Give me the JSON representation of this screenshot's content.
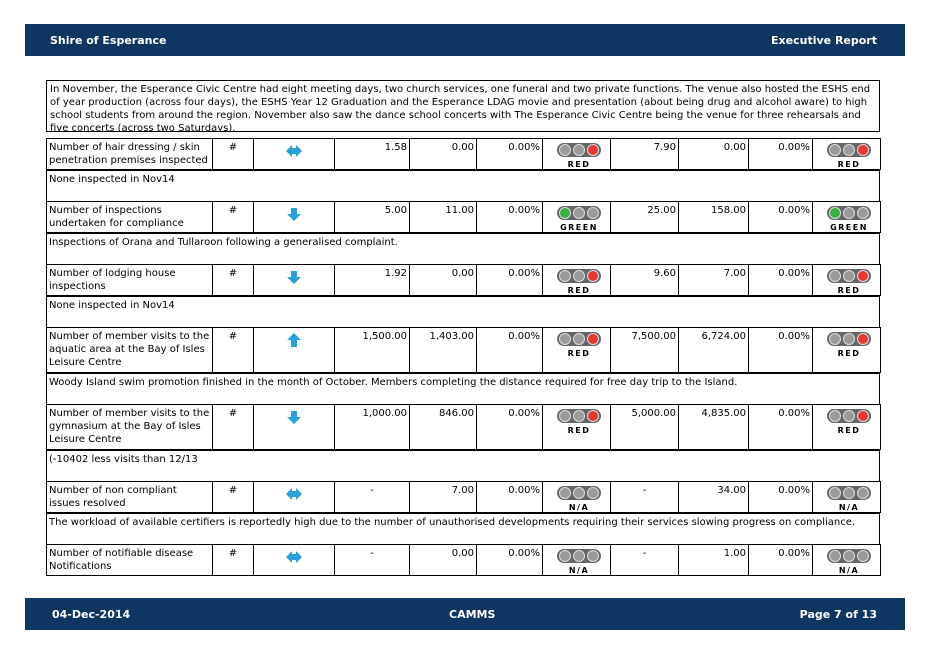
{
  "header": {
    "left": "Shire of Esperance",
    "right": "Executive Report"
  },
  "intro": "In November, the Esperance Civic Centre had eight meeting days, two church services, one funeral and two private functions.  The venue also hosted the ESHS end of year production (across four days), the ESHS Year 12 Graduation and the Esperance LDAG movie and presentation (about being drug and alcohol aware) to high school students from around the region. November also saw the dance school concerts with The Esperance Civic Centre being the venue for three rehearsals and five concerts (across two Saturdays).",
  "rows": [
    {
      "measure": "Number of hair dressing / skin penetration premises inspected",
      "unit": "#",
      "target": "1.58",
      "actual": "0.00",
      "variance": "0.00%",
      "status": "RED",
      "ytd_target": "7.90",
      "ytd_actual": "0.00",
      "ytd_variance": "0.00%",
      "ytd_status": "RED",
      "comment": "None inspected in Nov14"
    },
    {
      "measure": "Number of inspections undertaken for compliance",
      "unit": "#",
      "target": "5.00",
      "actual": "11.00",
      "variance": "0.00%",
      "status": "GREEN",
      "ytd_target": "25.00",
      "ytd_actual": "158.00",
      "ytd_variance": "0.00%",
      "ytd_status": "GREEN",
      "comment": "Inspections of Orana and Tullaroon following a generalised complaint."
    },
    {
      "measure": "Number of lodging house inspections",
      "unit": "#",
      "target": "1.92",
      "actual": "0.00",
      "variance": "0.00%",
      "status": "RED",
      "ytd_target": "9.60",
      "ytd_actual": "7.00",
      "ytd_variance": "0.00%",
      "ytd_status": "RED",
      "comment": "None inspected in Nov14"
    },
    {
      "measure": "Number of member visits to the aquatic area at the Bay of Isles Leisure Centre",
      "unit": "#",
      "target": "1,500.00",
      "actual": "1,403.00",
      "variance": "0.00%",
      "status": "RED",
      "ytd_target": "7,500.00",
      "ytd_actual": "6,724.00",
      "ytd_variance": "0.00%",
      "ytd_status": "RED",
      "comment": "Woody Island swim promotion finished in the month of October. Members completing the distance required for free day trip to the Island."
    },
    {
      "measure": "Number of member visits to the gymnasium at the Bay of Isles Leisure Centre",
      "unit": "#",
      "target": "1,000.00",
      "actual": "846.00",
      "variance": "0.00%",
      "status": "RED",
      "ytd_target": "5,000.00",
      "ytd_actual": "4,835.00",
      "ytd_variance": "0.00%",
      "ytd_status": "RED",
      "comment": "(-10402 less visits than 12/13"
    },
    {
      "measure": "Number of non compliant issues resolved",
      "unit": "#",
      "target": "-",
      "actual": "7.00",
      "variance": "0.00%",
      "status": "N/A",
      "ytd_target": "-",
      "ytd_actual": "34.00",
      "ytd_variance": "0.00%",
      "ytd_status": "N/A",
      "comment": "The workload of available certifiers is reportedly high due to the number of unauthorised developments requiring their services slowing progress on compliance."
    },
    {
      "measure": "Number of notifiable disease Notifications",
      "unit": "#",
      "target": "-",
      "actual": "0.00",
      "variance": "0.00%",
      "status": "N/A",
      "ytd_target": "-",
      "ytd_actual": "1.00",
      "ytd_variance": "0.00%",
      "ytd_status": "N/A"
    }
  ],
  "footer": {
    "date": "04-Dec-2014",
    "center": "CAMMS",
    "page": "Page 7 of 13"
  }
}
